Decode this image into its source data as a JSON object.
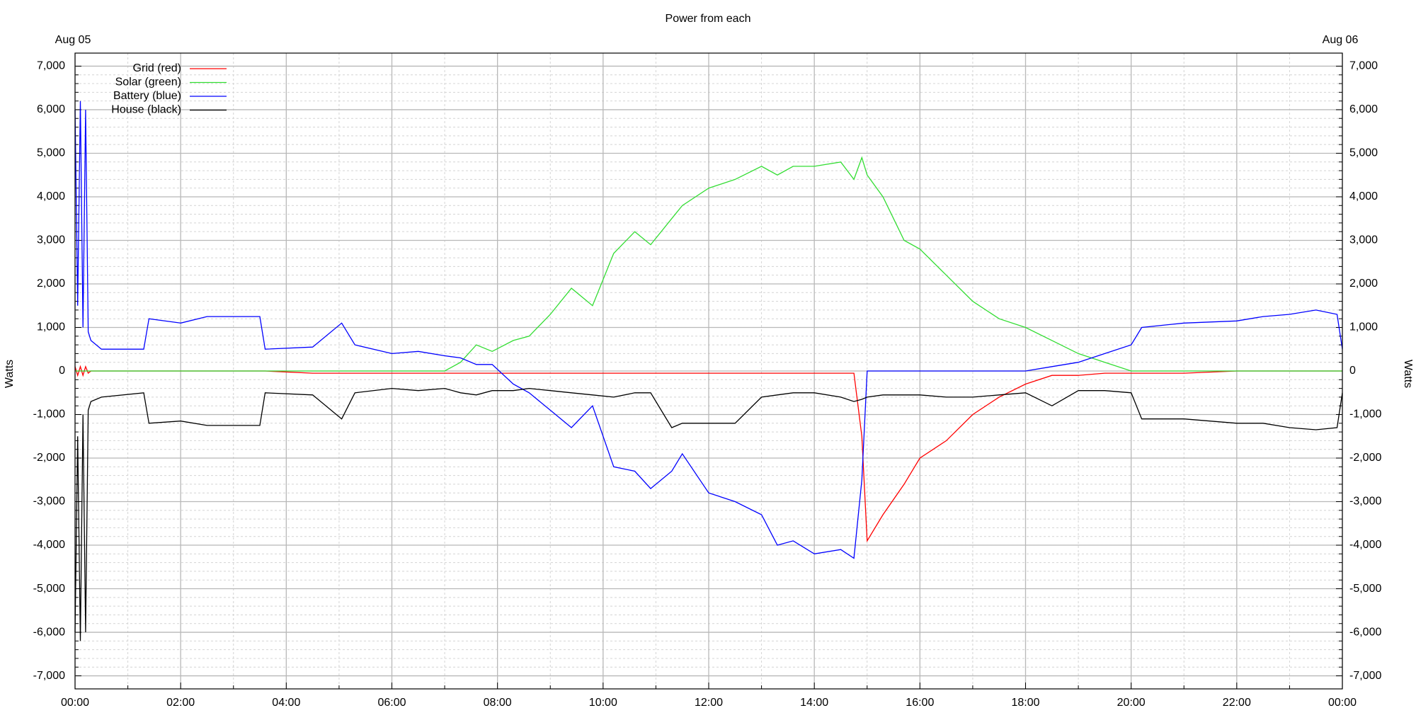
{
  "chart_data": {
    "type": "line",
    "title": "Power from each",
    "annotations": [
      "Aug 05",
      "Aug 06"
    ],
    "ylabel": "Watts",
    "y2label": "Watts",
    "x": [
      0,
      0.05,
      0.1,
      0.15,
      0.2,
      0.25,
      0.3,
      0.5,
      1.3,
      1.4,
      2,
      2.5,
      3.5,
      3.6,
      4.5,
      5.05,
      5.3,
      6,
      6.5,
      7,
      7.3,
      7.6,
      7.9,
      8.3,
      8.6,
      9,
      9.4,
      9.8,
      10.2,
      10.6,
      10.9,
      11.3,
      11.5,
      12,
      12.5,
      13,
      13.3,
      13.6,
      14,
      14.5,
      14.75,
      14.9,
      15,
      15.3,
      15.7,
      16,
      16.5,
      17,
      17.5,
      18,
      18.5,
      19,
      19.5,
      20,
      20.2,
      21,
      22,
      22.5,
      23,
      23.5,
      23.9,
      24
    ],
    "series": [
      {
        "name": "Grid (red)",
        "color": "#ff0000",
        "values": [
          100,
          -100,
          100,
          -100,
          100,
          -50,
          0,
          0,
          0,
          0,
          0,
          0,
          0,
          0,
          -50,
          -50,
          -50,
          -50,
          -50,
          -50,
          -50,
          -50,
          -50,
          -50,
          -50,
          -50,
          -50,
          -50,
          -50,
          -50,
          -50,
          -50,
          -50,
          -50,
          -50,
          -50,
          -50,
          -50,
          -50,
          -50,
          -50,
          -1500,
          -3900,
          -3300,
          -2600,
          -2000,
          -1600,
          -1000,
          -600,
          -300,
          -100,
          -100,
          -50,
          -50,
          -50,
          -50,
          0,
          0,
          0,
          0,
          0,
          0
        ]
      },
      {
        "name": "Solar (green)",
        "color": "#33dd33",
        "values": [
          0,
          0,
          0,
          0,
          0,
          0,
          0,
          0,
          0,
          0,
          0,
          0,
          0,
          0,
          0,
          0,
          0,
          0,
          0,
          0,
          200,
          600,
          450,
          700,
          800,
          1300,
          1900,
          1500,
          2700,
          3200,
          2900,
          3500,
          3800,
          4200,
          4400,
          4700,
          4500,
          4700,
          4700,
          4800,
          4400,
          4900,
          4500,
          4000,
          3000,
          2800,
          2200,
          1600,
          1200,
          1000,
          700,
          400,
          200,
          0,
          0,
          0,
          0,
          0,
          0,
          0,
          0,
          0
        ]
      },
      {
        "name": "Battery (blue)",
        "color": "#0000ff",
        "values": [
          6000,
          1500,
          6200,
          1000,
          6000,
          900,
          700,
          500,
          500,
          1200,
          1100,
          1250,
          1250,
          500,
          550,
          1100,
          600,
          400,
          450,
          350,
          300,
          150,
          150,
          -300,
          -500,
          -900,
          -1300,
          -800,
          -2200,
          -2300,
          -2700,
          -2300,
          -1900,
          -2800,
          -3000,
          -3300,
          -4000,
          -3900,
          -4200,
          -4100,
          -4300,
          -2500,
          0,
          0,
          0,
          0,
          0,
          0,
          0,
          0,
          100,
          200,
          400,
          600,
          1000,
          1100,
          1150,
          1250,
          1300,
          1400,
          1300,
          500
        ]
      },
      {
        "name": "House (black)",
        "color": "#000000",
        "values": [
          -6000,
          -1500,
          -6200,
          -1000,
          -6000,
          -900,
          -700,
          -600,
          -500,
          -1200,
          -1150,
          -1250,
          -1250,
          -500,
          -550,
          -1100,
          -500,
          -400,
          -450,
          -400,
          -500,
          -550,
          -450,
          -450,
          -400,
          -450,
          -500,
          -550,
          -600,
          -500,
          -500,
          -1300,
          -1200,
          -1200,
          -1200,
          -600,
          -550,
          -500,
          -500,
          -600,
          -700,
          -650,
          -600,
          -550,
          -550,
          -550,
          -600,
          -600,
          -550,
          -500,
          -800,
          -450,
          -450,
          -500,
          -1100,
          -1100,
          -1200,
          -1200,
          -1300,
          -1350,
          -1300,
          -500
        ]
      }
    ],
    "xlim": [
      0,
      24
    ],
    "xticks": [
      {
        "value": 0,
        "label": "00:00"
      },
      {
        "value": 2,
        "label": "02:00"
      },
      {
        "value": 4,
        "label": "04:00"
      },
      {
        "value": 6,
        "label": "06:00"
      },
      {
        "value": 8,
        "label": "08:00"
      },
      {
        "value": 10,
        "label": "10:00"
      },
      {
        "value": 12,
        "label": "12:00"
      },
      {
        "value": 14,
        "label": "14:00"
      },
      {
        "value": 16,
        "label": "16:00"
      },
      {
        "value": 18,
        "label": "18:00"
      },
      {
        "value": 20,
        "label": "20:00"
      },
      {
        "value": 22,
        "label": "22:00"
      },
      {
        "value": 24,
        "label": "00:00"
      }
    ],
    "ylim": [
      -7300,
      7300
    ],
    "yticks": [
      {
        "value": -7000,
        "label": "-7,000"
      },
      {
        "value": -6000,
        "label": "-6,000"
      },
      {
        "value": -5000,
        "label": "-5,000"
      },
      {
        "value": -4000,
        "label": "-4,000"
      },
      {
        "value": -3000,
        "label": "-3,000"
      },
      {
        "value": -2000,
        "label": "-2,000"
      },
      {
        "value": -1000,
        "label": "-1,000"
      },
      0,
      {
        "value": 1000,
        "label": "1,000"
      },
      {
        "value": 2000,
        "label": "2,000"
      },
      {
        "value": 3000,
        "label": "3,000"
      },
      {
        "value": 4000,
        "label": "4,000"
      },
      {
        "value": 5000,
        "label": "5,000"
      },
      {
        "value": 6000,
        "label": "6,000"
      },
      {
        "value": 7000,
        "label": "7,000"
      }
    ],
    "y2lim": [
      -7300,
      7300
    ],
    "y2ticks": [
      {
        "value": -7000,
        "label": "-7,000"
      },
      {
        "value": -6000,
        "label": "-6,000"
      },
      {
        "value": -5000,
        "label": "-5,000"
      },
      {
        "value": -4000,
        "label": "-4,000"
      },
      {
        "value": -3000,
        "label": "-3,000"
      },
      {
        "value": -2000,
        "label": "-2,000"
      },
      {
        "value": -1000,
        "label": "-1,000"
      },
      0,
      {
        "value": 1000,
        "label": "1,000"
      },
      {
        "value": 2000,
        "label": "2,000"
      },
      {
        "value": 3000,
        "label": "3,000"
      },
      {
        "value": 4000,
        "label": "4,000"
      },
      {
        "value": 5000,
        "label": "5,000"
      },
      {
        "value": 6000,
        "label": "6,000"
      },
      {
        "value": 7000,
        "label": "7,000"
      }
    ],
    "grid": true,
    "xminor": 2,
    "yminor": 5,
    "legend": "top-left"
  }
}
